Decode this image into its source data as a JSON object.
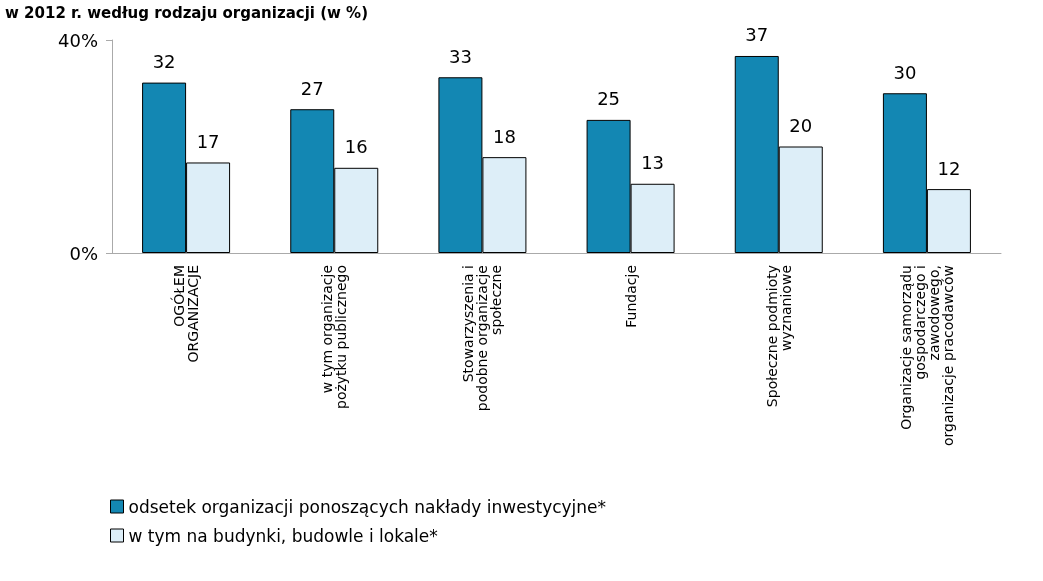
{
  "chart_data": {
    "type": "bar",
    "title": "w 2012 r. według rodzaju organizacji (w %)",
    "categories": [
      "OGÓŁEM\nORGANIZACJE",
      "w tym organizacje\npożytku publicznego",
      "Stowarzyszenia i\npodobne organizacje\nspołeczne",
      "Fundacje",
      "Społeczne podmioty\nwyznaniowe",
      "Organizacje samorządu\ngospodarczego i\nzawodowego,\norganizacje pracodawców"
    ],
    "series": [
      {
        "name": "odsetek organizacji ponoszących nakłady inwestycyjne*",
        "color": "#1387b3",
        "values": [
          32,
          27,
          33,
          25,
          37,
          30
        ]
      },
      {
        "name": "w tym na budynki, budowle i lokale*",
        "color": "#ddeef8",
        "values": [
          17,
          16,
          18,
          13,
          20,
          12
        ]
      }
    ],
    "ylim": [
      0,
      40
    ],
    "yticks": [
      {
        "value": 0,
        "label": "0%"
      },
      {
        "value": 40,
        "label": "40%"
      }
    ],
    "data_labels": true,
    "grid": false,
    "legend": "bottom left"
  }
}
